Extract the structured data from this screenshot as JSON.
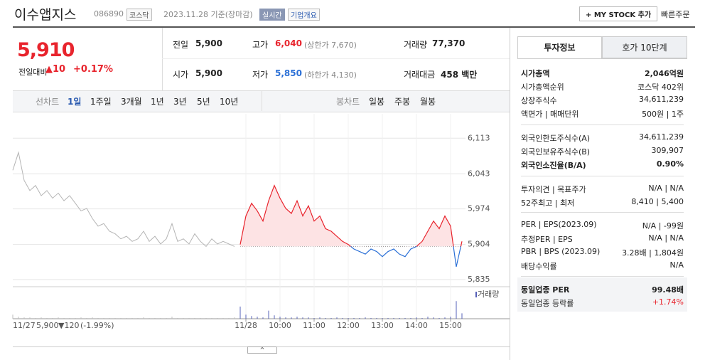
{
  "header": {
    "title": "이수앱지스",
    "code": "086890",
    "market": "코스닥",
    "date": "2023.11.28 기준(장마감)",
    "realtime": "실시간",
    "overview": "기업개요",
    "mystock": "+ MY STOCK 추가",
    "quick_order": "빠른주문"
  },
  "price": {
    "current": "5,910",
    "change_label": "전일대비",
    "change": "▲10",
    "change_pct": "+0.17%"
  },
  "summary": [
    [
      {
        "label": "전일",
        "value": "5,900"
      },
      {
        "label": "고가",
        "value": "6,040",
        "note": "(상한가 7,670)"
      },
      {
        "label": "거래량",
        "value": "77,370"
      }
    ],
    [
      {
        "label": "시가",
        "value": "5,900"
      },
      {
        "label": "저가",
        "value": "5,850",
        "note": "(하한가 4,130)"
      },
      {
        "label": "거래대금",
        "value": "458 백만"
      }
    ]
  ],
  "periods": {
    "line_label": "선차트",
    "line": [
      "1일",
      "1주일",
      "3개월",
      "1년",
      "3년",
      "5년",
      "10년"
    ],
    "candle_label": "봉차트",
    "candle": [
      "일봉",
      "주봉",
      "월봉"
    ]
  },
  "chart_data": {
    "type": "line",
    "volume_label": "거래량",
    "prev_label": "11/27",
    "prev_close": "5,900",
    "prev_change": "▼120",
    "prev_pct": "(-1.99%)",
    "base": 5900,
    "xlim": [
      0,
      79
    ],
    "xticks": [
      {
        "value": 41,
        "label": "11/28"
      },
      {
        "value": 47,
        "label": "10:00"
      },
      {
        "value": 53,
        "label": "11:00"
      },
      {
        "value": 59,
        "label": "12:00"
      },
      {
        "value": 65,
        "label": "13:00"
      },
      {
        "value": 71,
        "label": "14:00"
      },
      {
        "value": 77,
        "label": "15:00"
      }
    ],
    "ylim": [
      5825,
      6126
    ],
    "yticks": [
      {
        "value": 6113,
        "label": "6,113"
      },
      {
        "value": 6043,
        "label": "6,043"
      },
      {
        "value": 5974,
        "label": "5,974"
      },
      {
        "value": 5904,
        "label": "5,904"
      },
      {
        "value": 5835,
        "label": "5,835"
      }
    ],
    "volume_ylim": [
      0,
      40
    ],
    "series": [
      {
        "name": "11/27",
        "color": "#b5b5b5",
        "x": [
          0,
          1,
          2,
          3,
          4,
          5,
          6,
          7,
          8,
          9,
          10,
          11,
          12,
          13,
          14,
          15,
          16,
          17,
          18,
          19,
          20,
          21,
          22,
          23,
          24,
          25,
          26,
          27,
          28,
          29,
          30,
          31,
          32,
          33,
          34,
          35,
          36,
          37,
          38,
          39
        ],
        "values": [
          6050,
          6085,
          6030,
          6010,
          6020,
          6000,
          6010,
          5995,
          6005,
          5990,
          6000,
          5985,
          5970,
          5975,
          5955,
          5940,
          5945,
          5930,
          5925,
          5915,
          5920,
          5910,
          5915,
          5930,
          5910,
          5920,
          5905,
          5915,
          5945,
          5910,
          5915,
          5905,
          5925,
          5910,
          5900,
          5915,
          5905,
          5910,
          5905,
          5900
        ],
        "volume": [
          6,
          3,
          2,
          2,
          1,
          2,
          1,
          1,
          2,
          1,
          1,
          1,
          2,
          1,
          2,
          1,
          1,
          1,
          1,
          1,
          1,
          1,
          1,
          2,
          1,
          1,
          1,
          1,
          3,
          1,
          1,
          1,
          1,
          1,
          1,
          1,
          1,
          1,
          1,
          2
        ]
      },
      {
        "name": "11/28",
        "color": "#e8242d",
        "color_down": "#2a6fd6",
        "x": [
          40,
          41,
          42,
          43,
          44,
          45,
          46,
          47,
          48,
          49,
          50,
          51,
          52,
          53,
          54,
          55,
          56,
          57,
          58,
          59,
          60,
          61,
          62,
          63,
          64,
          65,
          66,
          67,
          68,
          69,
          70,
          71,
          72,
          73,
          74,
          75,
          76,
          77,
          78,
          79
        ],
        "values": [
          5904,
          5960,
          5985,
          5970,
          5950,
          5990,
          6020,
          5995,
          5975,
          5965,
          5990,
          5960,
          5980,
          5950,
          5960,
          5935,
          5930,
          5920,
          5910,
          5904,
          5895,
          5890,
          5885,
          5895,
          5890,
          5880,
          5890,
          5895,
          5885,
          5880,
          5895,
          5900,
          5910,
          5930,
          5950,
          5935,
          5960,
          5940,
          5860,
          5910
        ],
        "volume": [
          18,
          6,
          4,
          3,
          2,
          12,
          5,
          3,
          2,
          2,
          3,
          2,
          2,
          1,
          2,
          1,
          1,
          2,
          1,
          1,
          1,
          1,
          2,
          1,
          1,
          1,
          1,
          1,
          1,
          1,
          1,
          2,
          1,
          3,
          2,
          1,
          2,
          3,
          26,
          8
        ]
      }
    ]
  },
  "invest": {
    "tabs": [
      "투자정보",
      "호가 10단계"
    ],
    "sections": [
      [
        {
          "label": "시가총액",
          "value": "2,046억원",
          "bold": true
        },
        {
          "label": "시가총액순위",
          "value": "코스닥 402위"
        },
        {
          "label": "상장주식수",
          "value": "34,611,239"
        },
        {
          "label": "액면가 | 매매단위",
          "value": "500원 | 1주"
        }
      ],
      [
        {
          "label": "외국인한도주식수(A)",
          "value": "34,611,239"
        },
        {
          "label": "외국인보유주식수(B)",
          "value": "309,907"
        },
        {
          "label": "외국인소진율(B/A)",
          "value": "0.90%",
          "bold": true
        }
      ],
      [
        {
          "label": "투자의견 | 목표주가",
          "value": "N/A | N/A"
        },
        {
          "label": "52주최고 | 최저",
          "value": "8,410 | 5,400"
        }
      ],
      [
        {
          "label": "PER | EPS(2023.09)",
          "value": "N/A | -99원"
        },
        {
          "label": "추정PER | EPS",
          "value": "N/A | N/A"
        },
        {
          "label": "PBR | BPS (2023.09)",
          "value": "3.28배 | 1,804원"
        },
        {
          "label": "배당수익률",
          "value": "N/A"
        }
      ],
      [
        {
          "label": "동일업종 PER",
          "value": "99.48배",
          "bold": true
        },
        {
          "label": "동일업종 등락률",
          "value": "+1.74%",
          "red": true
        }
      ]
    ]
  }
}
